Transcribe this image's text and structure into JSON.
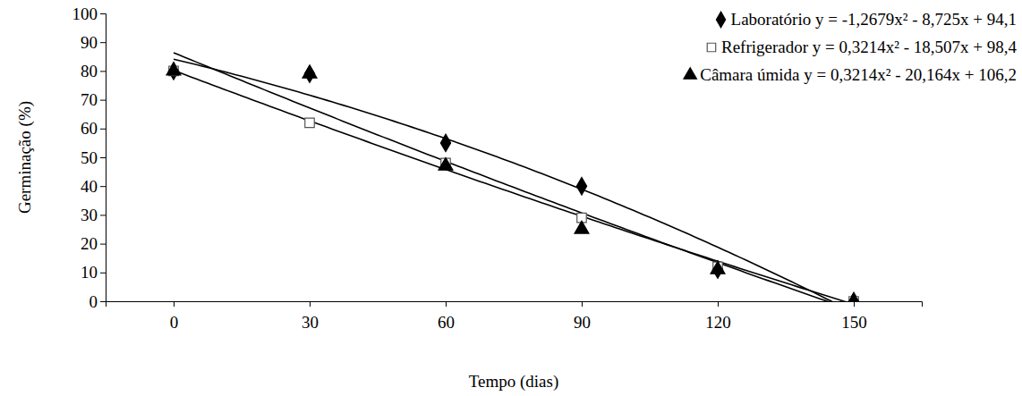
{
  "chart_data": {
    "type": "scatter",
    "x_label": "Tempo (dias)",
    "y_label": "Germinação (%)",
    "x": [
      0,
      30,
      60,
      90,
      120,
      150
    ],
    "xlim": [
      -15,
      165
    ],
    "xticks": [
      0,
      30,
      60,
      90,
      120,
      150
    ],
    "ylim": [
      0,
      100
    ],
    "yticks": [
      0,
      10,
      20,
      30,
      40,
      50,
      60,
      70,
      80,
      90,
      100
    ],
    "grid": false,
    "legend": "top-right",
    "series": [
      {
        "name": "Laboratório y = -1,2679x² - 8,725x + 94,1",
        "color": "#000000",
        "marker": "diamond",
        "values": [
          80,
          79,
          55,
          40,
          11,
          0
        ],
        "trend": [
          -1.2679,
          -8.725,
          94.1
        ]
      },
      {
        "name": "Refrigerador y = 0,3214x² - 18,507x + 98,4",
        "color": "#000000",
        "marker": "square-open",
        "values": [
          80,
          62,
          48,
          29,
          12,
          0
        ],
        "trend": [
          0.3214,
          -18.507,
          98.4
        ]
      },
      {
        "name": "Câmara úmida y = 0,3214x² - 20,164x + 106,2",
        "color": "#000000",
        "marker": "triangle",
        "values": [
          80,
          79,
          47,
          25,
          11,
          0
        ],
        "trend": [
          0.3214,
          -20.164,
          106.2
        ]
      }
    ]
  }
}
